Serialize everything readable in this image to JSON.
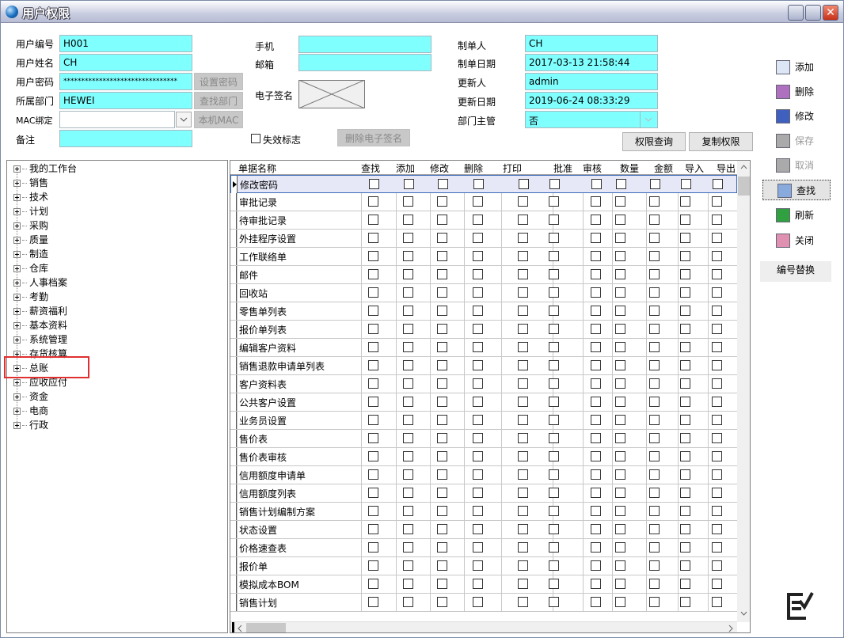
{
  "window": {
    "title": "用户权限",
    "close_glyph": "✕"
  },
  "form": {
    "user_id_label": "用户编号",
    "user_id": "H001",
    "user_name_label": "用户姓名",
    "user_name": "CH",
    "password_label": "用户密码",
    "password": "********************************",
    "dept_label": "所属部门",
    "dept": "HEWEI",
    "mac_label": "MAC绑定",
    "mac": "",
    "remark_label": "备注",
    "remark": "",
    "set_password": "设置密码",
    "find_dept": "查找部门",
    "local_mac": "本机MAC",
    "phone_label": "手机",
    "phone": "",
    "email_label": "邮箱",
    "email": "",
    "signature_label": "电子签名",
    "invalid_label": "失效标志",
    "invalid_checked": false,
    "delete_signature": "删除电子签名",
    "creator_label": "制单人",
    "creator": "CH",
    "create_date_label": "制单日期",
    "create_date": "2017-03-13 21:58:44",
    "updater_label": "更新人",
    "updater": "admin",
    "update_date_label": "更新日期",
    "update_date": "2019-06-24 08:33:29",
    "dept_manager_label": "部门主管",
    "dept_manager": "否",
    "perm_query": "权限查询",
    "copy_perm": "复制权限"
  },
  "toolbar": [
    {
      "label": "添加",
      "icon": "new-document-icon",
      "enabled": true
    },
    {
      "label": "删除",
      "icon": "delete-hand-icon",
      "enabled": true
    },
    {
      "label": "修改",
      "icon": "edit-icon",
      "enabled": true
    },
    {
      "label": "保存",
      "icon": "save-icon",
      "enabled": false
    },
    {
      "label": "取消",
      "icon": "cancel-icon",
      "enabled": false
    },
    {
      "label": "查找",
      "icon": "search-magnifier-icon",
      "enabled": true
    },
    {
      "label": "刷新",
      "icon": "refresh-icon",
      "enabled": true
    },
    {
      "label": "关闭",
      "icon": "close-door-icon",
      "enabled": true
    }
  ],
  "replace_code": "编号替换",
  "tree": [
    "我的工作台",
    "销售",
    "技术",
    "计划",
    "采购",
    "质量",
    "制造",
    "仓库",
    "人事档案",
    "考勤",
    "薪资福利",
    "基本资料",
    "系统管理",
    "存货核算",
    "总账",
    "应收应付",
    "资金",
    "电商",
    "行政"
  ],
  "tree_highlighted": "总账",
  "grid": {
    "columns": [
      "单据名称",
      "查找",
      "添加",
      "修改",
      "删除",
      "打印",
      "批准",
      "审核",
      "数量",
      "金额",
      "导入",
      "导出"
    ],
    "rows": [
      "修改密码",
      "审批记录",
      "待审批记录",
      "外挂程序设置",
      "工作联络单",
      "邮件",
      "回收站",
      "零售单列表",
      "报价单列表",
      "编辑客户资料",
      "销售退款申请单列表",
      "客户资料表",
      "公共客户设置",
      "业务员设置",
      "售价表",
      "售价表审核",
      "信用额度申请单",
      "信用额度列表",
      "销售计划编制方案",
      "状态设置",
      "价格速查表",
      "报价单",
      "模拟成本BOM",
      "销售计划"
    ],
    "selected_row": 0
  },
  "colors": {
    "field": "#80ffff",
    "highlight": "#e03030"
  }
}
